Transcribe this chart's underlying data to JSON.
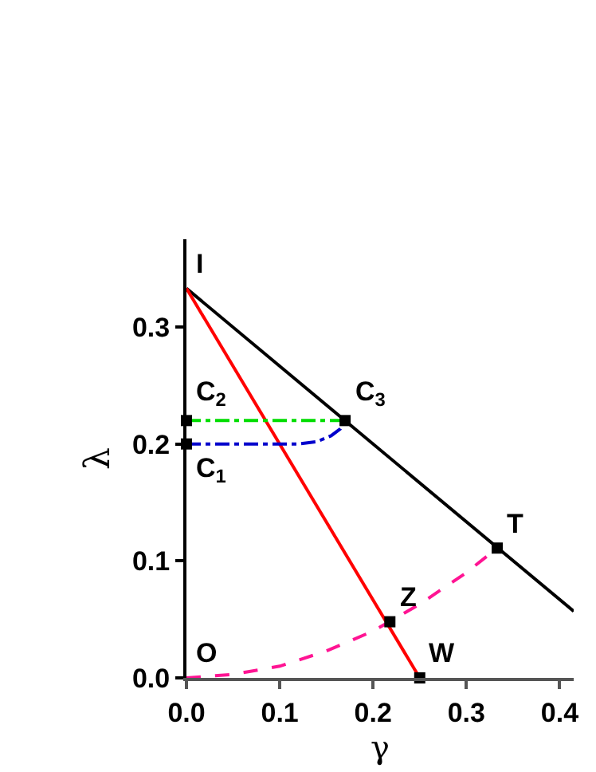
{
  "chart_data": {
    "type": "line",
    "xlabel": "γ",
    "ylabel": "λ",
    "xlim": [
      0,
      0.415
    ],
    "ylim": [
      0,
      0.375
    ],
    "xticks": [
      {
        "value": 0,
        "label": "0.0"
      },
      0.1,
      0.2,
      0.3,
      0.4
    ],
    "yticks": [
      {
        "value": 0,
        "label": "0.0"
      },
      0.1,
      0.2,
      0.3
    ],
    "grid": false,
    "series": [
      {
        "color": "#000000",
        "line_style": "solid",
        "x": [
          0,
          0.415
        ],
        "values": [
          0.333,
          0.057
        ]
      },
      {
        "color": "#ff0000",
        "line_style": "solid",
        "x": [
          0,
          0.25
        ],
        "values": [
          0.333,
          0
        ]
      },
      {
        "color": "#ff1493",
        "line_style": "dashed",
        "x": [
          0,
          0.05,
          0.1,
          0.15,
          0.2,
          0.25,
          0.3,
          0.333
        ],
        "values": [
          0,
          0.003,
          0.01,
          0.023,
          0.04,
          0.063,
          0.09,
          0.111
        ]
      },
      {
        "color": "#00dd00",
        "line_style": "dashdot",
        "x": [
          0,
          0.17
        ],
        "values": [
          0.22,
          0.22
        ]
      },
      {
        "color": "#0000cc",
        "line_style": "dashdot",
        "x": [
          0,
          0.12,
          0.14,
          0.155,
          0.165,
          0.17
        ],
        "values": [
          0.2,
          0.2,
          0.202,
          0.207,
          0.213,
          0.22
        ]
      },
      {
        "type": "scatter",
        "marker": "square",
        "color": "#000000",
        "x": [
          0,
          0,
          0.17,
          0.333,
          0.218,
          0.25
        ],
        "values": [
          0.2,
          0.22,
          0.22,
          0.111,
          0.048,
          0
        ]
      }
    ],
    "annotations": [
      {
        "text": "I",
        "x": 0,
        "y": 0.333
      },
      {
        "text": "C$_{2}$",
        "x": 0,
        "y": 0.22
      },
      {
        "text": "C$_{1}$",
        "x": 0,
        "y": 0.2
      },
      {
        "text": "C$_{3}$",
        "x": 0.17,
        "y": 0.22
      },
      {
        "text": "T",
        "x": 0.333,
        "y": 0.111
      },
      {
        "text": "Z",
        "x": 0.218,
        "y": 0.048
      },
      {
        "text": "W",
        "x": 0.25,
        "y": 0
      },
      {
        "text": "O",
        "x": 0,
        "y": 0
      }
    ]
  }
}
